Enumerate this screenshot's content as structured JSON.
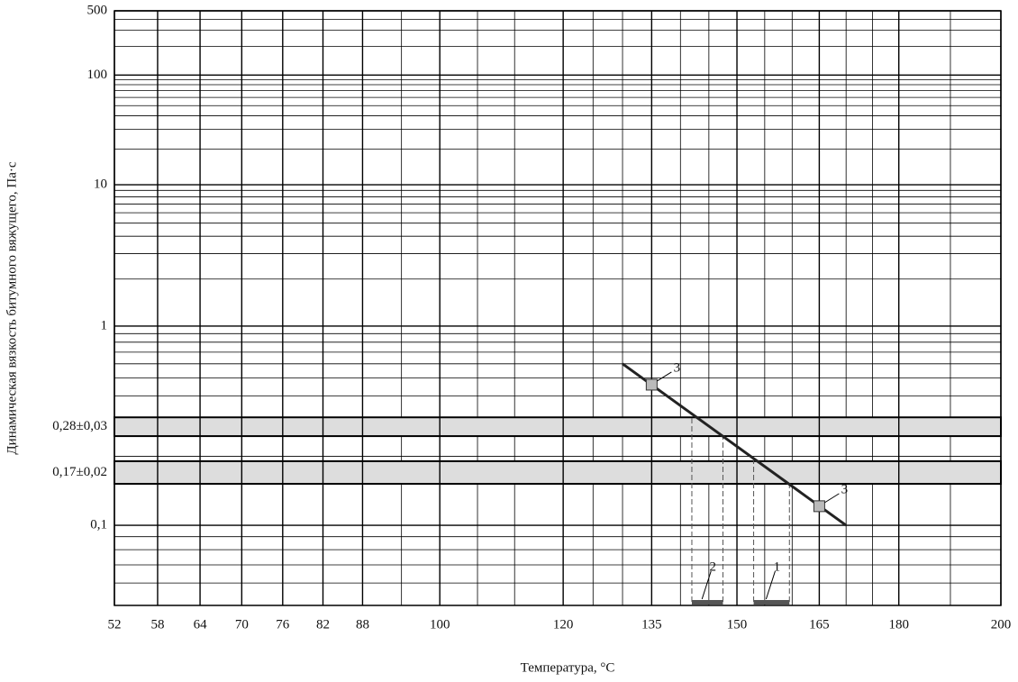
{
  "chart_data": {
    "type": "line",
    "x_label": "Температура, °С",
    "y_label": "Динамическая вязкость битумного вяжущего, Па·с",
    "xscale": "log-kelvin",
    "yscale": "loglog",
    "xlim": [
      52,
      200
    ],
    "xticks": [
      52,
      58,
      64,
      70,
      76,
      82,
      88,
      100,
      120,
      135,
      150,
      165,
      180,
      200
    ],
    "xminor": [
      94,
      106,
      112,
      125,
      130,
      140,
      145,
      155,
      160,
      170,
      175,
      190
    ],
    "ylim": [
      0.05,
      500
    ],
    "yticks": [
      {
        "value": 0.1,
        "label": "0,1"
      },
      1,
      10,
      100,
      500
    ],
    "yminor": [
      0.06,
      0.07,
      0.08,
      0.09,
      0.2,
      0.3,
      0.4,
      0.5,
      0.6,
      0.7,
      0.8,
      0.9,
      2,
      3,
      4,
      5,
      6,
      7,
      8,
      9,
      20,
      30,
      40,
      50,
      60,
      70,
      80,
      90,
      200,
      300,
      400
    ],
    "grid": true,
    "series": [
      {
        "color": "#222222",
        "x": [
          130,
          170
        ],
        "values": [
          0.6,
          0.1
        ]
      }
    ],
    "points": {
      "label": "3",
      "color": "#bbbbbb",
      "x": [
        135,
        165
      ],
      "values": [
        0.46,
        0.12
      ]
    },
    "bands": [
      {
        "label": "0,28±0,03",
        "ymin": 0.25,
        "ymax": 0.31,
        "color": "#dddddd"
      },
      {
        "label": "0,17±0,02",
        "ymin": 0.15,
        "ymax": 0.19,
        "color": "#dddddd"
      }
    ],
    "ranges": [
      {
        "label": "2",
        "x": [
          142,
          147.5
        ]
      },
      {
        "label": "1",
        "x": [
          153,
          159.5
        ]
      }
    ]
  }
}
